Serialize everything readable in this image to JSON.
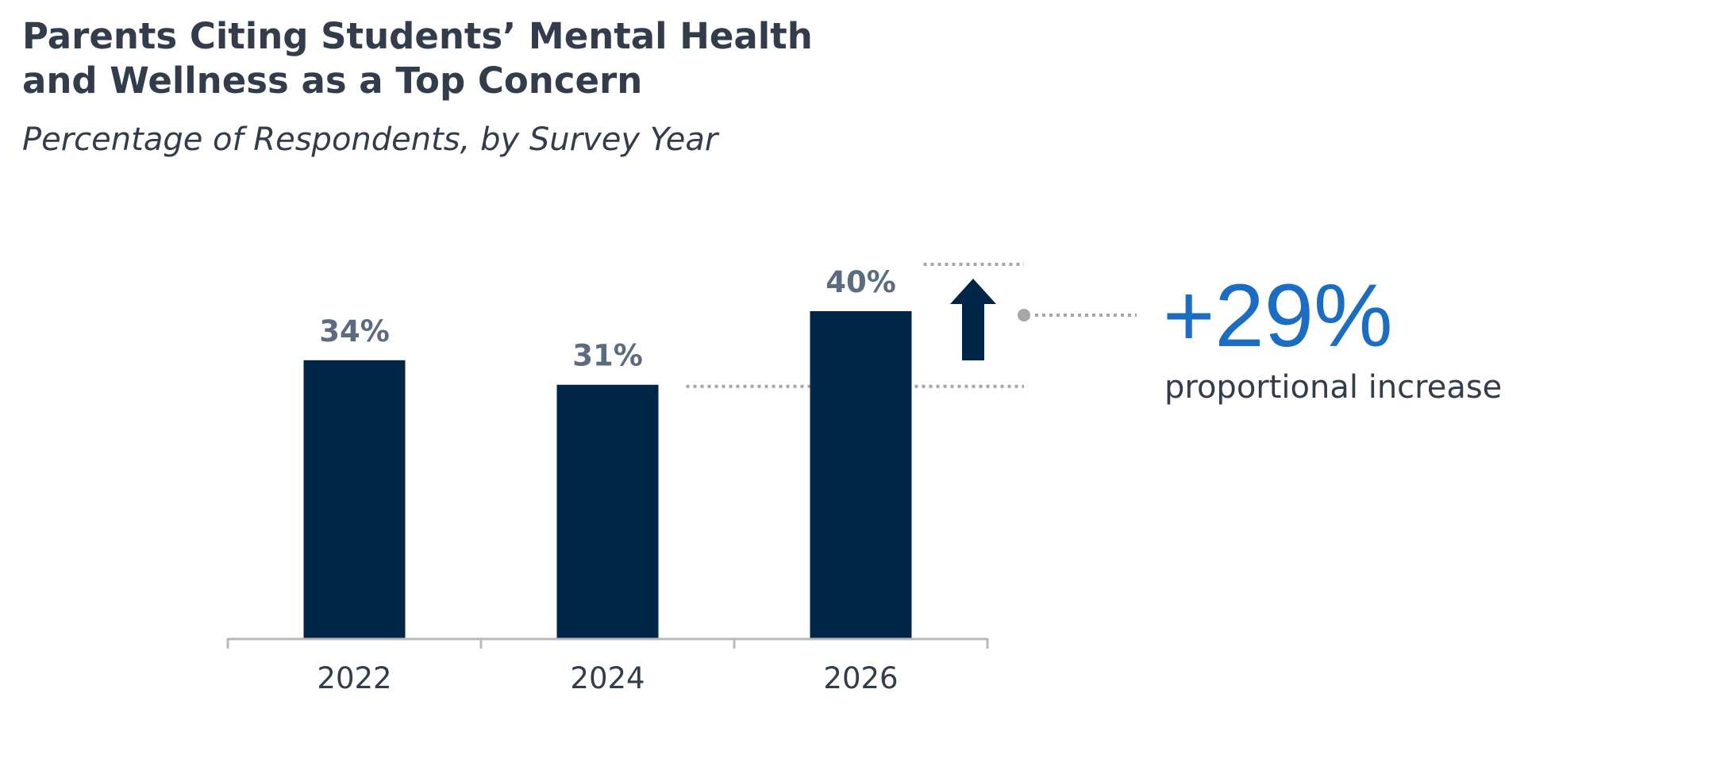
{
  "title_lines": [
    "Parents Citing Students’ Mental Health",
    "and Wellness as a Top Concern"
  ],
  "subtitle": "Percentage of Respondents, by Survey Year",
  "callout": {
    "value": "+29%",
    "label": "proportional increase"
  },
  "colors": {
    "bar": "#002647",
    "data_label": "#5b6b80",
    "axis": "#b8b8b8",
    "tick_label": "#323c4b",
    "reference_line": "#a6a6a6",
    "callout_value": "#1a6dc3",
    "arrow": "#002647"
  },
  "chart_data": {
    "type": "bar",
    "title": "Parents Citing Students’ Mental Health and Wellness as a Top Concern",
    "subtitle": "Percentage of Respondents, by Survey Year",
    "categories": [
      "2022",
      "2024",
      "2026"
    ],
    "values": [
      34,
      31,
      40
    ],
    "data_labels": [
      "34%",
      "31%",
      "40%"
    ],
    "ylim": [
      0,
      40
    ],
    "grid": false,
    "legend": "none",
    "annotation": {
      "type": "increase-arrow",
      "from": "2024",
      "to": "2026",
      "text": "+29%",
      "caption": "proportional increase"
    }
  }
}
